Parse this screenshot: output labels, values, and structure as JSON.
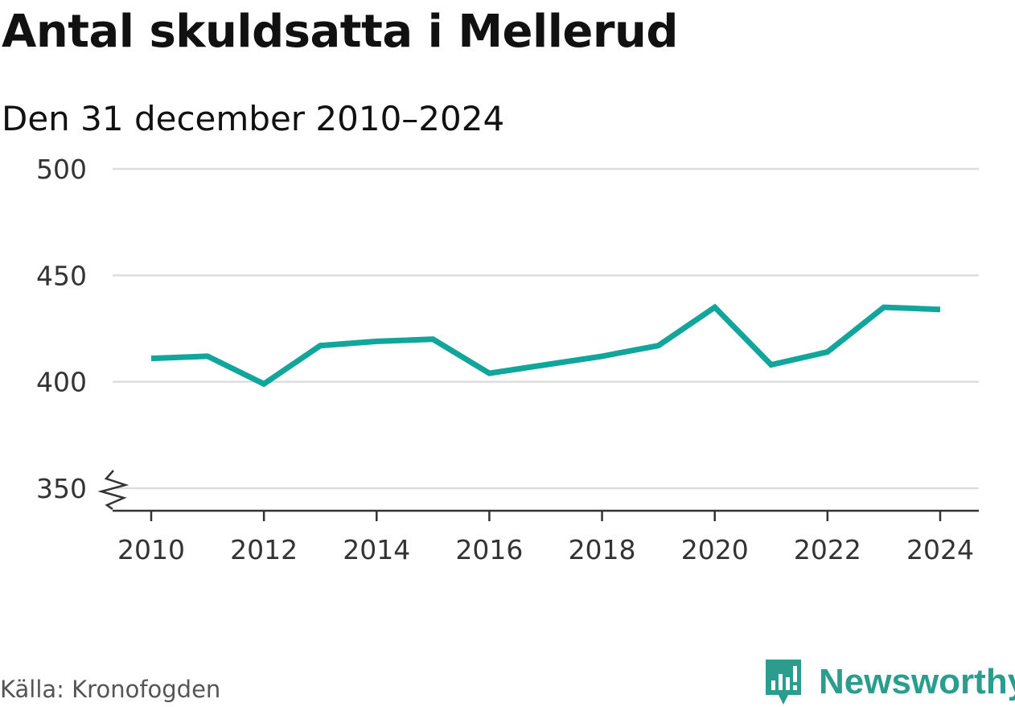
{
  "title": "Antal skuldsatta i Mellerud",
  "subtitle": "Den 31 december 2010–2024",
  "source": "Källa: Kronofogden",
  "brand": {
    "name": "Newsworthy",
    "icon": "newsworthy-logo-icon",
    "color": "#2a9d8f"
  },
  "colors": {
    "line": "#12a59b",
    "grid": "#dddddd",
    "axis": "#333333"
  },
  "chart_data": {
    "type": "line",
    "title": "Antal skuldsatta i Mellerud",
    "subtitle": "Den 31 december 2010–2024",
    "xlabel": "",
    "ylabel": "",
    "x": [
      2010,
      2011,
      2012,
      2013,
      2014,
      2015,
      2016,
      2017,
      2018,
      2019,
      2020,
      2021,
      2022,
      2023,
      2024
    ],
    "series": [
      {
        "name": "Antal skuldsatta",
        "values": [
          411,
          412,
          399,
          417,
          419,
          420,
          404,
          408,
          412,
          417,
          435,
          408,
          414,
          435,
          434
        ]
      }
    ],
    "ylim": [
      350,
      500
    ],
    "yticks": [
      350,
      400,
      450,
      500
    ],
    "xticks": [
      2010,
      2012,
      2014,
      2016,
      2018,
      2020,
      2022,
      2024
    ],
    "axis_break": true,
    "grid": true
  }
}
